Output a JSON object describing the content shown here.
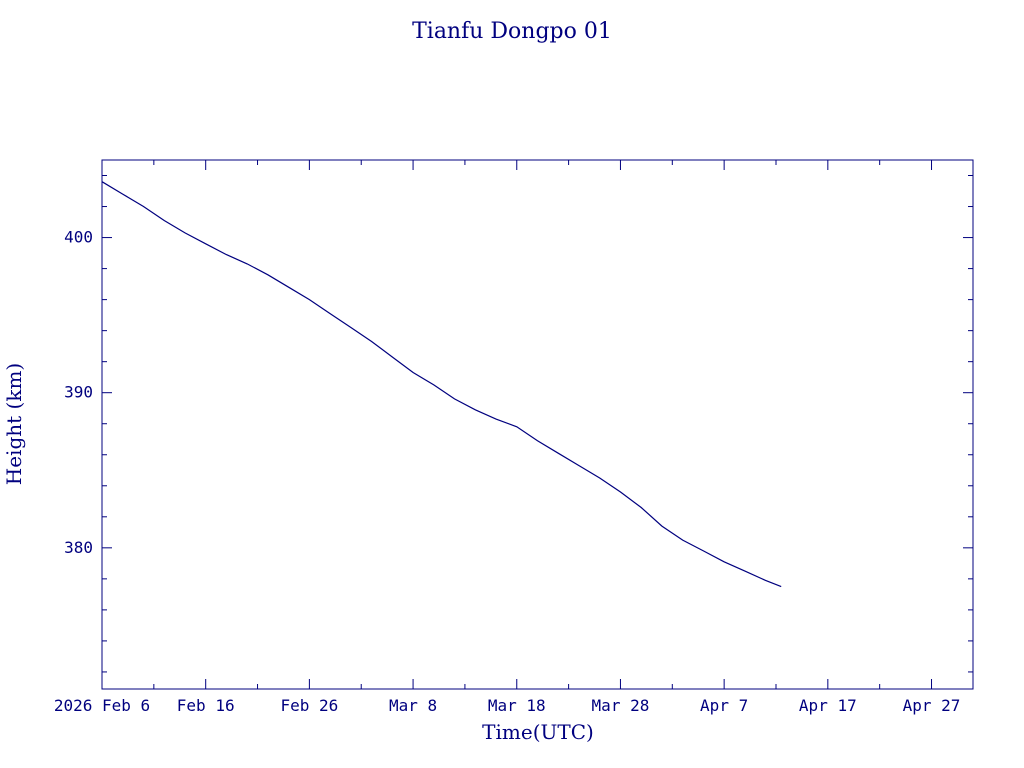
{
  "chart_data": {
    "type": "line",
    "title": "Tianfu Dongpo 01",
    "xlabel": "Time(UTC)",
    "ylabel": "Height (km)",
    "x_ticks": [
      {
        "date": "2026-02-06",
        "label": "2026 Feb  6"
      },
      {
        "date": "2026-02-16",
        "label": "Feb 16"
      },
      {
        "date": "2026-02-26",
        "label": "Feb 26"
      },
      {
        "date": "2026-03-08",
        "label": "Mar  8"
      },
      {
        "date": "2026-03-18",
        "label": "Mar 18"
      },
      {
        "date": "2026-03-28",
        "label": "Mar 28"
      },
      {
        "date": "2026-04-07",
        "label": "Apr  7"
      },
      {
        "date": "2026-04-17",
        "label": "Apr 17"
      },
      {
        "date": "2026-04-27",
        "label": "Apr 27"
      }
    ],
    "y_ticks": [
      380,
      390,
      400
    ],
    "xlim": [
      "2026-02-06T00:00",
      "2026-05-01T00:00"
    ],
    "ylim": [
      370.9,
      405.0
    ],
    "series": [
      {
        "x": [
          "2026-02-06T00:00",
          "2026-02-08T00:00",
          "2026-02-10T00:00",
          "2026-02-12T00:00",
          "2026-02-14T00:00",
          "2026-02-16T00:00",
          "2026-02-18T00:00",
          "2026-02-20T00:00",
          "2026-02-22T00:00",
          "2026-02-24T00:00",
          "2026-02-26T00:00",
          "2026-02-28T00:00",
          "2026-03-02T00:00",
          "2026-03-04T00:00",
          "2026-03-06T00:00",
          "2026-03-08T00:00",
          "2026-03-10T00:00",
          "2026-03-12T00:00",
          "2026-03-14T00:00",
          "2026-03-16T00:00",
          "2026-03-18T00:00",
          "2026-03-20T00:00",
          "2026-03-22T00:00",
          "2026-03-24T00:00",
          "2026-03-26T00:00",
          "2026-03-28T00:00",
          "2026-03-30T00:00",
          "2026-04-01T00:00",
          "2026-04-03T00:00",
          "2026-04-05T00:00",
          "2026-04-07T00:00",
          "2026-04-09T00:00",
          "2026-04-11T00:00",
          "2026-04-12T12:00"
        ],
        "y": [
          403.6,
          402.8,
          402.0,
          401.1,
          400.3,
          399.6,
          398.9,
          398.3,
          397.6,
          396.8,
          396.0,
          395.1,
          394.2,
          393.3,
          392.3,
          391.3,
          390.5,
          389.6,
          388.9,
          388.3,
          387.8,
          386.9,
          386.1,
          385.3,
          384.5,
          383.6,
          382.6,
          381.4,
          380.5,
          379.8,
          379.1,
          378.5,
          377.9,
          377.5
        ]
      }
    ],
    "colors": {
      "axis": "#00007f",
      "line": "#00007f",
      "background": "#ffffff"
    }
  }
}
